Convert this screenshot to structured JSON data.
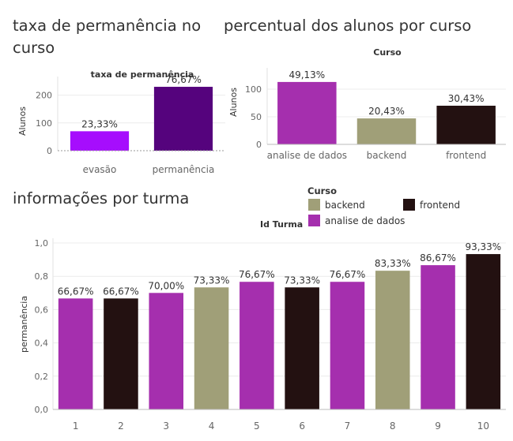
{
  "titles": {
    "retention": "taxa de permanência no curso",
    "percent": "percentual dos alunos por curso",
    "classes": "informações por turma"
  },
  "colors": {
    "backend": "#A09F78",
    "frontend": "#231111",
    "analise": "#A52FAE",
    "evasao": "#A60DFD",
    "permanencia": "#55037D"
  },
  "legend": {
    "title": "Curso",
    "items": [
      {
        "label": "backend",
        "key": "backend"
      },
      {
        "label": "frontend",
        "key": "frontend"
      },
      {
        "label": "analise de dados",
        "key": "analise"
      }
    ]
  },
  "chart_data": [
    {
      "type": "bar",
      "title": "taxa de permanência",
      "ylabel": "Alunos",
      "categories": [
        "evasão",
        "permanência"
      ],
      "values": [
        70,
        230
      ],
      "labels": [
        "23,33%",
        "76,67%"
      ],
      "colors": [
        "#A60DFD",
        "#55037D"
      ],
      "ylim": [
        0,
        250
      ],
      "yticks": [
        0,
        100,
        200
      ],
      "ytick_labels": [
        "0",
        "100",
        "200"
      ]
    },
    {
      "type": "bar",
      "title": "Curso",
      "ylabel": "Alunos",
      "categories": [
        "analise de dados",
        "backend",
        "frontend"
      ],
      "values": [
        113,
        47,
        70
      ],
      "labels": [
        "49,13%",
        "20,43%",
        "30,43%"
      ],
      "colors": [
        "#A52FAE",
        "#A09F78",
        "#231111"
      ],
      "ylim": [
        0,
        130
      ],
      "yticks": [
        0,
        50,
        100
      ],
      "ytick_labels": [
        "0",
        "50",
        "100"
      ]
    },
    {
      "type": "bar",
      "title": "Id Turma",
      "ylabel": "permanência",
      "categories": [
        "1",
        "2",
        "3",
        "4",
        "5",
        "6",
        "7",
        "8",
        "9",
        "10"
      ],
      "values": [
        0.6667,
        0.6667,
        0.7,
        0.7333,
        0.7667,
        0.7333,
        0.7667,
        0.8333,
        0.8667,
        0.9333
      ],
      "labels": [
        "66,67%",
        "66,67%",
        "70,00%",
        "73,33%",
        "76,67%",
        "73,33%",
        "76,67%",
        "83,33%",
        "86,67%",
        "93,33%"
      ],
      "curso": [
        "analise",
        "frontend",
        "analise",
        "backend",
        "analise",
        "frontend",
        "analise",
        "backend",
        "analise",
        "frontend"
      ],
      "ylim": [
        0,
        1.0
      ],
      "yticks": [
        0,
        0.2,
        0.4,
        0.6,
        0.8,
        1.0
      ],
      "ytick_labels": [
        "0,0",
        "0,2",
        "0,4",
        "0,6",
        "0,8",
        "1,0"
      ]
    }
  ]
}
